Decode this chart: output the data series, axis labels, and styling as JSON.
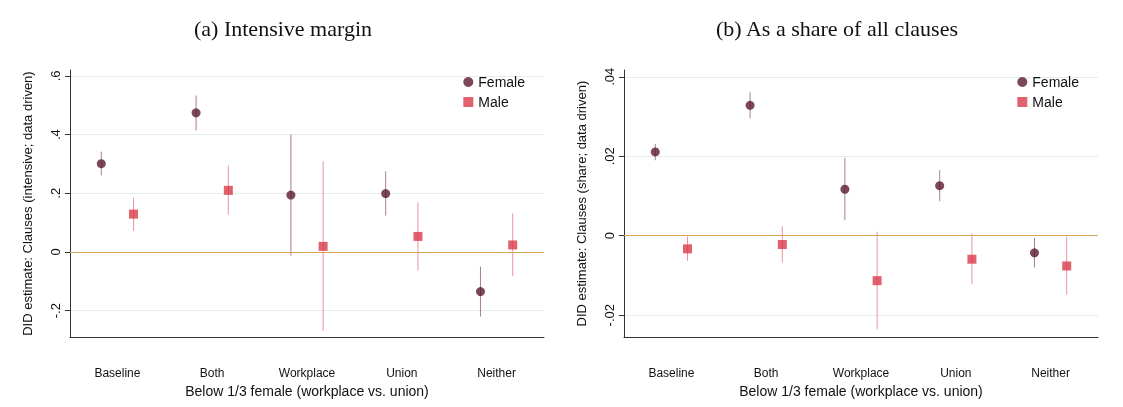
{
  "chart_data": [
    {
      "type": "scatter",
      "title": "(a) Intensive margin",
      "xlabel": "Below 1/3 female (workplace vs. union)",
      "ylabel": "DID estimate: Clauses (intensive; data driven)",
      "categories": [
        "Baseline",
        "Both",
        "Workplace",
        "Union",
        "Neither"
      ],
      "series": [
        {
          "name": "Female",
          "color": "#5a1a2e",
          "marker": "circle",
          "values": [
            0.301,
            0.474,
            0.194,
            0.199,
            -0.135
          ],
          "errors": [
            [
              0.261,
              0.342
            ],
            [
              0.414,
              0.533
            ],
            [
              -0.013,
              0.4
            ],
            [
              0.124,
              0.275
            ],
            [
              -0.22,
              -0.05
            ]
          ]
        },
        {
          "name": "Male",
          "color": "#d93a4a",
          "marker": "square",
          "values": [
            0.129,
            0.21,
            0.019,
            0.053,
            0.024
          ],
          "errors": [
            [
              0.072,
              0.185
            ],
            [
              0.127,
              0.295
            ],
            [
              -0.269,
              0.309
            ],
            [
              -0.064,
              0.169
            ],
            [
              -0.082,
              0.131
            ]
          ]
        }
      ],
      "ylim": [
        -0.29,
        0.62
      ],
      "yticks": [
        {
          "value": -0.2,
          "label": "-.2"
        },
        0,
        {
          "value": 0.2,
          "label": ".2"
        },
        {
          "value": 0.4,
          "label": ".4"
        },
        {
          "value": 0.6,
          "label": ".6"
        }
      ],
      "ref_lines": [
        {
          "axis": "y",
          "value": 0,
          "color": "#d9a55c"
        }
      ],
      "grid": "y",
      "legend": "top right"
    },
    {
      "type": "scatter",
      "title": "(b) As a share of all clauses",
      "xlabel": "Below 1/3 female (workplace vs. union)",
      "ylabel": "DID estimate: Clauses (share; data driven)",
      "categories": [
        "Baseline",
        "Both",
        "Workplace",
        "Union",
        "Neither"
      ],
      "series": [
        {
          "name": "Female",
          "color": "#5a1a2e",
          "marker": "circle",
          "values": [
            0.0211,
            0.0328,
            0.0117,
            0.0126,
            -0.0043
          ],
          "errors": [
            [
              0.019,
              0.0231
            ],
            [
              0.0295,
              0.0361
            ],
            [
              0.0039,
              0.0196
            ],
            [
              0.0087,
              0.0165
            ],
            [
              -0.008,
              -0.0006
            ]
          ]
        },
        {
          "name": "Male",
          "color": "#d93a4a",
          "marker": "square",
          "values": [
            -0.0033,
            -0.0022,
            -0.0113,
            -0.0059,
            -0.0076
          ],
          "errors": [
            [
              -0.0063,
              -0.0002
            ],
            [
              -0.0067,
              0.0024
            ],
            [
              -0.0236,
              0.001
            ],
            [
              -0.0122,
              0.0005
            ],
            [
              -0.0148,
              -0.0002
            ]
          ]
        }
      ],
      "ylim": [
        -0.0255,
        0.0417
      ],
      "yticks": [
        {
          "value": -0.02,
          "label": "-.02"
        },
        0,
        {
          "value": 0.02,
          "label": ".02"
        },
        {
          "value": 0.04,
          "label": ".04"
        }
      ],
      "ref_lines": [
        {
          "axis": "y",
          "value": 0,
          "color": "#d9a55c"
        }
      ],
      "grid": "y",
      "legend": "top right"
    }
  ]
}
